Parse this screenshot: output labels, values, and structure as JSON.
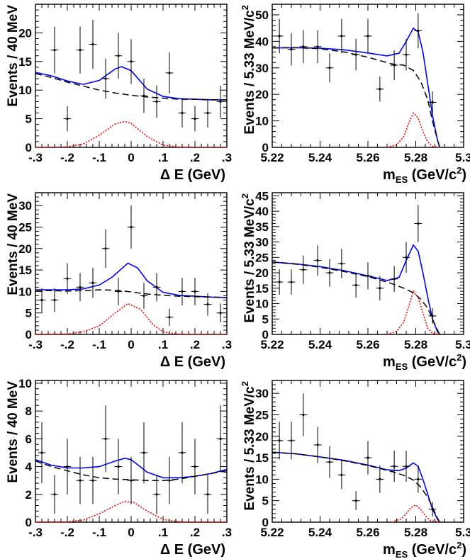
{
  "colors": {
    "total_fit": "#0000ff",
    "background": "#000000",
    "signal": "#ff0000",
    "data_points": "#000000"
  },
  "chart_data": [
    {
      "id": "de-1",
      "type": "scatter",
      "xlabel": "Δ E (GeV)",
      "ylabel": "Events / 40 MeV",
      "xlim": [
        -0.3,
        0.3
      ],
      "ylim": [
        0,
        25
      ],
      "x_ticks": [
        -0.3,
        -0.2,
        -0.1,
        0,
        0.1,
        0.2,
        0.3
      ],
      "y_ticks": [
        0,
        5,
        10,
        15,
        20
      ],
      "points": [
        [
          -0.24,
          17,
          4.1
        ],
        [
          -0.2,
          5,
          2.2
        ],
        [
          -0.16,
          17,
          4.1
        ],
        [
          -0.12,
          18,
          4.3
        ],
        [
          -0.08,
          12,
          3.5
        ],
        [
          -0.04,
          16,
          4.0
        ],
        [
          0,
          15,
          3.9
        ],
        [
          0.04,
          9,
          3.0
        ],
        [
          0.08,
          8,
          2.8
        ],
        [
          0.12,
          13,
          3.6
        ],
        [
          0.16,
          6,
          2.5
        ],
        [
          0.2,
          5,
          2.2
        ],
        [
          0.24,
          6,
          2.5
        ],
        [
          0.28,
          8,
          2.8
        ]
      ],
      "series": [
        {
          "style": "total_fit",
          "x": [
            -0.3,
            -0.25,
            -0.2,
            -0.15,
            -0.1,
            -0.05,
            -0.03,
            0,
            0.05,
            0.1,
            0.15,
            0.2,
            0.25,
            0.3
          ],
          "y": [
            13.1,
            12.5,
            11.6,
            11.0,
            11.7,
            13.7,
            14.1,
            13.4,
            10.2,
            8.9,
            8.5,
            8.4,
            8.3,
            8.3
          ]
        },
        {
          "style": "background",
          "x": [
            -0.3,
            -0.25,
            -0.2,
            -0.15,
            -0.1,
            -0.05,
            0,
            0.05,
            0.1,
            0.15,
            0.2,
            0.25,
            0.3
          ],
          "y": [
            12.9,
            12.2,
            11.4,
            10.7,
            10.0,
            9.5,
            9.1,
            8.8,
            8.6,
            8.4,
            8.4,
            8.3,
            8.3
          ]
        },
        {
          "style": "signal",
          "x": [
            -0.3,
            -0.25,
            -0.2,
            -0.15,
            -0.1,
            -0.05,
            -0.02,
            0,
            0.05,
            0.1,
            0.15,
            0.2,
            0.3
          ],
          "y": [
            0,
            0,
            0.1,
            0.6,
            2.1,
            4.1,
            4.5,
            4.2,
            1.9,
            0.4,
            0.05,
            0,
            0
          ]
        }
      ]
    },
    {
      "id": "mes-1",
      "type": "scatter",
      "xlabel": "m",
      "xlabel_sub": "ES",
      "xlabel_rest": " (GeV/c",
      "xlabel_sup": "2",
      "xlabel_end": ")",
      "ylabel": "Events / 5.33 MeV/c",
      "ylabel_sup": "2",
      "xlim": [
        5.22,
        5.3
      ],
      "ylim": [
        0,
        54
      ],
      "x_ticks": [
        5.22,
        5.24,
        5.26,
        5.28,
        5.3
      ],
      "y_ticks": [
        0,
        10,
        20,
        30,
        40,
        50
      ],
      "points": [
        [
          5.223,
          42,
          6.5
        ],
        [
          5.228,
          37,
          6.1
        ],
        [
          5.233,
          38,
          6.2
        ],
        [
          5.239,
          38,
          6.2
        ],
        [
          5.244,
          30,
          5.5
        ],
        [
          5.249,
          42,
          6.5
        ],
        [
          5.255,
          35,
          5.9
        ],
        [
          5.26,
          42,
          6.5
        ],
        [
          5.265,
          22,
          4.7
        ],
        [
          5.271,
          31,
          5.6
        ],
        [
          5.276,
          35,
          5.9
        ],
        [
          5.281,
          44,
          6.6
        ],
        [
          5.287,
          17,
          4.1
        ]
      ],
      "series": [
        {
          "style": "total_fit",
          "x": [
            5.22,
            5.23,
            5.24,
            5.25,
            5.26,
            5.268,
            5.273,
            5.276,
            5.279,
            5.281,
            5.283,
            5.285,
            5.287,
            5.289,
            5.29
          ],
          "y": [
            37.5,
            37.6,
            37.4,
            36.8,
            35.6,
            34.5,
            35.5,
            40,
            45,
            43.5,
            36,
            24,
            12,
            3,
            0
          ]
        },
        {
          "style": "background",
          "x": [
            5.22,
            5.23,
            5.24,
            5.25,
            5.26,
            5.27,
            5.275,
            5.279,
            5.282,
            5.285,
            5.287,
            5.289,
            5.29
          ],
          "y": [
            37.5,
            37.6,
            37.2,
            36.0,
            34.0,
            31.5,
            31.0,
            29.0,
            25.0,
            18.0,
            10.0,
            3.0,
            0
          ]
        },
        {
          "style": "signal",
          "x": [
            5.268,
            5.272,
            5.275,
            5.277,
            5.279,
            5.281,
            5.283,
            5.285,
            5.287,
            5.29
          ],
          "y": [
            0,
            1,
            4,
            9,
            13,
            11,
            6,
            2,
            0.4,
            0
          ]
        }
      ]
    },
    {
      "id": "de-2",
      "type": "scatter",
      "xlabel": "Δ E (GeV)",
      "ylabel": "Events / 40 MeV",
      "xlim": [
        -0.3,
        0.3
      ],
      "ylim": [
        0,
        33
      ],
      "x_ticks": [
        -0.3,
        -0.2,
        -0.1,
        0,
        0.1,
        0.2,
        0.3
      ],
      "y_ticks": [
        0,
        5,
        10,
        15,
        20,
        25,
        30
      ],
      "points": [
        [
          -0.28,
          8,
          2.8
        ],
        [
          -0.24,
          8,
          2.8
        ],
        [
          -0.2,
          13,
          3.6
        ],
        [
          -0.16,
          11,
          3.3
        ],
        [
          -0.12,
          12,
          3.5
        ],
        [
          -0.08,
          20,
          4.5
        ],
        [
          -0.04,
          10,
          3.2
        ],
        [
          0,
          25,
          5.0
        ],
        [
          0.04,
          9,
          3.0
        ],
        [
          0.08,
          11,
          3.3
        ],
        [
          0.12,
          4,
          2.0
        ],
        [
          0.16,
          10,
          3.2
        ],
        [
          0.2,
          10,
          3.2
        ],
        [
          0.24,
          7,
          2.6
        ],
        [
          0.28,
          5,
          2.2
        ]
      ],
      "series": [
        {
          "style": "total_fit",
          "x": [
            -0.3,
            -0.25,
            -0.2,
            -0.15,
            -0.1,
            -0.06,
            -0.03,
            -0.01,
            0.02,
            0.05,
            0.1,
            0.15,
            0.2,
            0.25,
            0.3
          ],
          "y": [
            10.4,
            10.4,
            10.4,
            10.6,
            11.5,
            13.3,
            15.3,
            16.6,
            15.5,
            12.5,
            9.8,
            9.1,
            8.9,
            8.7,
            8.6
          ]
        },
        {
          "style": "background",
          "x": [
            -0.3,
            -0.2,
            -0.15,
            -0.1,
            -0.05,
            0,
            0.05,
            0.1,
            0.15,
            0.2,
            0.25,
            0.3
          ],
          "y": [
            10.3,
            10.1,
            10.2,
            10.4,
            10.3,
            9.9,
            9.4,
            9.1,
            8.9,
            8.8,
            8.7,
            8.6
          ]
        },
        {
          "style": "signal",
          "x": [
            -0.3,
            -0.2,
            -0.15,
            -0.1,
            -0.05,
            -0.01,
            0.03,
            0.07,
            0.1,
            0.15,
            0.2,
            0.3
          ],
          "y": [
            0,
            0.1,
            0.6,
            2.0,
            5.0,
            7.2,
            5.8,
            2.2,
            0.6,
            0.05,
            0,
            0
          ]
        }
      ]
    },
    {
      "id": "mes-2",
      "type": "scatter",
      "xlabel": "m",
      "xlabel_sub": "ES",
      "xlabel_rest": " (GeV/c",
      "xlabel_sup": "2",
      "xlabel_end": ")",
      "ylabel": "Events / 5.33 MeV/c",
      "ylabel_sup": "2",
      "xlim": [
        5.22,
        5.3
      ],
      "ylim": [
        0,
        46
      ],
      "x_ticks": [
        5.22,
        5.24,
        5.26,
        5.28,
        5.3
      ],
      "y_ticks": [
        0,
        5,
        10,
        15,
        20,
        25,
        30,
        35,
        40,
        45
      ],
      "points": [
        [
          5.223,
          17,
          4.1
        ],
        [
          5.228,
          17,
          4.1
        ],
        [
          5.233,
          21,
          4.6
        ],
        [
          5.239,
          24,
          4.9
        ],
        [
          5.244,
          20,
          4.5
        ],
        [
          5.249,
          23,
          4.8
        ],
        [
          5.255,
          16,
          4.0
        ],
        [
          5.26,
          19,
          4.4
        ],
        [
          5.265,
          15,
          3.9
        ],
        [
          5.271,
          18,
          4.2
        ],
        [
          5.276,
          25,
          5.0
        ],
        [
          5.281,
          36,
          6.0
        ],
        [
          5.287,
          6,
          2.5
        ]
      ],
      "series": [
        {
          "style": "total_fit",
          "x": [
            5.22,
            5.23,
            5.24,
            5.25,
            5.26,
            5.268,
            5.273,
            5.276,
            5.279,
            5.281,
            5.283,
            5.285,
            5.287,
            5.289,
            5.29
          ],
          "y": [
            23.5,
            22.9,
            22.0,
            20.7,
            19.0,
            17.5,
            18.5,
            24,
            29,
            27,
            20,
            12,
            5,
            1,
            0
          ]
        },
        {
          "style": "background",
          "x": [
            5.22,
            5.23,
            5.24,
            5.25,
            5.26,
            5.27,
            5.275,
            5.279,
            5.282,
            5.285,
            5.287,
            5.289,
            5.29
          ],
          "y": [
            23.5,
            22.8,
            21.8,
            20.4,
            18.8,
            16.5,
            15.0,
            13.5,
            11.5,
            8.5,
            5.0,
            1.5,
            0
          ]
        },
        {
          "style": "signal",
          "x": [
            5.268,
            5.272,
            5.275,
            5.277,
            5.279,
            5.281,
            5.283,
            5.285,
            5.287,
            5.29
          ],
          "y": [
            0,
            1,
            4,
            9,
            14,
            12,
            7,
            2,
            0.4,
            0
          ]
        }
      ]
    },
    {
      "id": "de-3",
      "type": "scatter",
      "xlabel": "Δ E (GeV)",
      "ylabel": "Events / 40 MeV",
      "xlim": [
        -0.3,
        0.3
      ],
      "ylim": [
        0,
        10.2
      ],
      "x_ticks": [
        -0.3,
        -0.2,
        -0.1,
        0,
        0.1,
        0.2,
        0.3
      ],
      "y_ticks": [
        0,
        2,
        4,
        6,
        8,
        10
      ],
      "points": [
        [
          -0.28,
          5,
          2.2
        ],
        [
          -0.24,
          2,
          1.4
        ],
        [
          -0.2,
          4,
          2.0
        ],
        [
          -0.16,
          3,
          1.7
        ],
        [
          -0.12,
          3,
          1.7
        ],
        [
          -0.08,
          6,
          2.4
        ],
        [
          -0.04,
          4,
          2.0
        ],
        [
          0,
          3,
          1.7
        ],
        [
          0.04,
          5,
          2.2
        ],
        [
          0.08,
          2,
          1.4
        ],
        [
          0.12,
          3,
          1.7
        ],
        [
          0.16,
          5,
          2.2
        ],
        [
          0.2,
          4,
          2.0
        ],
        [
          0.24,
          2,
          1.4
        ],
        [
          0.28,
          6,
          2.4
        ]
      ],
      "series": [
        {
          "style": "total_fit",
          "x": [
            -0.3,
            -0.25,
            -0.2,
            -0.15,
            -0.1,
            -0.05,
            -0.02,
            0,
            0.05,
            0.1,
            0.15,
            0.2,
            0.25,
            0.3
          ],
          "y": [
            4.5,
            4.1,
            3.9,
            3.9,
            4.0,
            4.4,
            4.6,
            4.5,
            3.6,
            3.2,
            3.2,
            3.3,
            3.5,
            3.8
          ]
        },
        {
          "style": "background",
          "x": [
            -0.3,
            -0.25,
            -0.2,
            -0.15,
            -0.1,
            -0.05,
            0,
            0.05,
            0.1,
            0.15,
            0.2,
            0.25,
            0.3
          ],
          "y": [
            4.4,
            4.0,
            3.7,
            3.4,
            3.2,
            3.1,
            3.05,
            3.0,
            3.0,
            3.1,
            3.3,
            3.5,
            3.7
          ]
        },
        {
          "style": "signal",
          "x": [
            -0.3,
            -0.2,
            -0.15,
            -0.1,
            -0.05,
            -0.02,
            0.01,
            0.05,
            0.1,
            0.15,
            0.2,
            0.3
          ],
          "y": [
            0,
            0.02,
            0.15,
            0.6,
            1.2,
            1.5,
            1.4,
            0.8,
            0.2,
            0.03,
            0,
            0
          ]
        }
      ]
    },
    {
      "id": "mes-3",
      "type": "scatter",
      "xlabel": "m",
      "xlabel_sub": "ES",
      "xlabel_rest": " (GeV/c",
      "xlabel_sup": "2",
      "xlabel_end": ")",
      "ylabel": "Events / 5.33 MeV/c",
      "ylabel_sup": "2",
      "xlim": [
        5.22,
        5.3
      ],
      "ylim": [
        0,
        33
      ],
      "x_ticks": [
        5.22,
        5.24,
        5.26,
        5.28,
        5.3
      ],
      "y_ticks": [
        0,
        5,
        10,
        15,
        20,
        25,
        30
      ],
      "points": [
        [
          5.223,
          19,
          4.4
        ],
        [
          5.228,
          19,
          4.4
        ],
        [
          5.233,
          25,
          5.0
        ],
        [
          5.239,
          18,
          4.2
        ],
        [
          5.244,
          14,
          3.7
        ],
        [
          5.249,
          11,
          3.3
        ],
        [
          5.255,
          5,
          2.2
        ],
        [
          5.26,
          15,
          3.9
        ],
        [
          5.265,
          10,
          3.2
        ],
        [
          5.271,
          13,
          3.6
        ],
        [
          5.276,
          13,
          3.6
        ],
        [
          5.281,
          10,
          3.2
        ],
        [
          5.287,
          3,
          1.7
        ]
      ],
      "series": [
        {
          "style": "total_fit",
          "x": [
            5.22,
            5.23,
            5.24,
            5.25,
            5.26,
            5.268,
            5.273,
            5.276,
            5.279,
            5.281,
            5.283,
            5.285,
            5.287,
            5.289,
            5.29
          ],
          "y": [
            16.3,
            15.9,
            15.2,
            14.4,
            13.3,
            12.2,
            12.0,
            12.6,
            13.8,
            13.0,
            10.0,
            6.5,
            3.0,
            0.8,
            0
          ]
        },
        {
          "style": "background",
          "x": [
            5.22,
            5.23,
            5.24,
            5.25,
            5.26,
            5.27,
            5.275,
            5.279,
            5.282,
            5.285,
            5.287,
            5.289,
            5.29
          ],
          "y": [
            16.3,
            15.9,
            15.2,
            14.3,
            13.2,
            11.8,
            10.9,
            9.8,
            8.2,
            5.8,
            3.5,
            1.0,
            0
          ]
        },
        {
          "style": "signal",
          "x": [
            5.27,
            5.274,
            5.276,
            5.278,
            5.28,
            5.282,
            5.284,
            5.286,
            5.29
          ],
          "y": [
            0,
            0.8,
            2.0,
            3.4,
            4.0,
            3.0,
            1.5,
            0.4,
            0
          ]
        }
      ]
    }
  ]
}
